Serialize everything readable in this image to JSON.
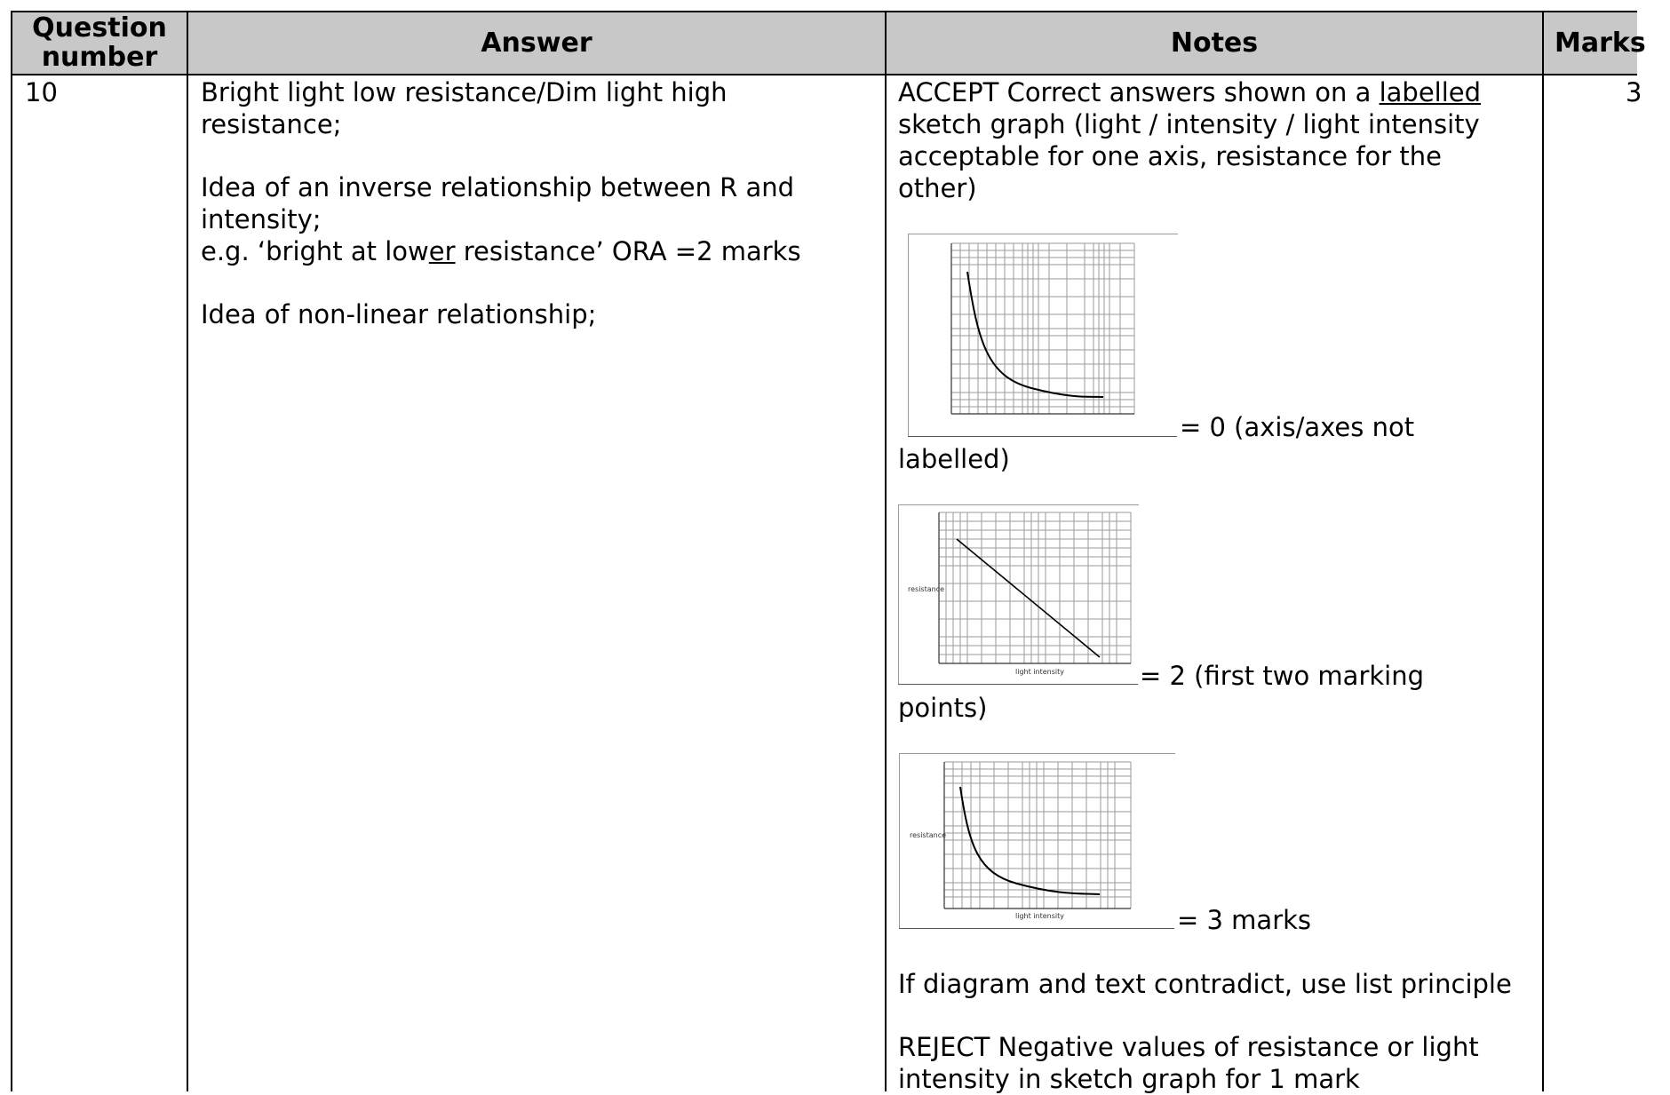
{
  "headers": {
    "question_number": "Question number",
    "answer": "Answer",
    "notes": "Notes",
    "marks": "Marks"
  },
  "row": {
    "question_number": "10",
    "marks": "3",
    "answer_lines": [
      "Bright light low resistance/Dim light high",
      "resistance;",
      "Idea of an inverse relationship between R and",
      "intensity;",
      "e.g. ‘bright at low",
      "er",
      " resistance’ ORA =2 marks",
      "Idea of non-linear relationship;"
    ],
    "notes": {
      "accept_line1_pre": "ACCEPT Correct answers shown on a ",
      "accept_line1_underlined": "labelled",
      "accept_line2": "sketch graph (light / intensity / light intensity",
      "accept_line3": "acceptable for one axis, resistance for the",
      "accept_line4": "other)",
      "graph1_result": "= 0 (axis/axes not",
      "graph1_result_cont": "labelled)",
      "graph2_result": "= 2 (first two marking",
      "graph2_result_cont": "points)",
      "graph3_result": "= 3 marks",
      "list_principle": "If diagram and text contradict, use list principle",
      "reject_line1": "REJECT Negative values of resistance or light",
      "reject_line2": "intensity in sketch graph for 1 mark"
    },
    "graphs": {
      "graph2_ylabel": "resistance",
      "graph2_xlabel": "light intensity",
      "graph3_ylabel": "resistance",
      "graph3_xlabel": "light intensity"
    }
  }
}
